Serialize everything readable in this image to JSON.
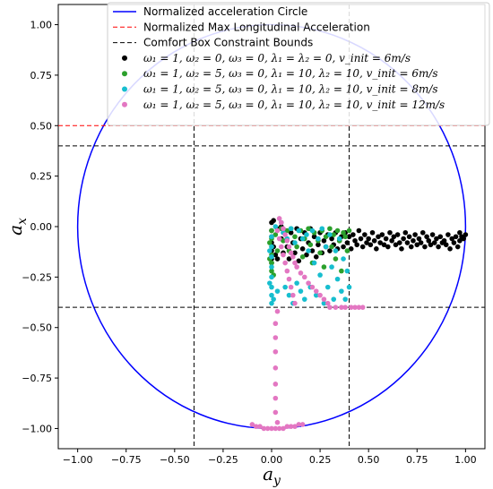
{
  "chart_data": {
    "type": "scatter",
    "title": "",
    "xlabel": "a",
    "xlabel_sub": "y",
    "ylabel": "a",
    "ylabel_sub": "x",
    "xlim": [
      -1.1,
      1.1
    ],
    "ylim": [
      -1.1,
      1.1
    ],
    "xticks": [
      -1.0,
      -0.75,
      -0.5,
      -0.25,
      0.0,
      0.25,
      0.5,
      0.75,
      1.0
    ],
    "xtick_labels": [
      "−1.00",
      "−0.75",
      "−0.50",
      "−0.25",
      "0.00",
      "0.25",
      "0.50",
      "0.75",
      "1.00"
    ],
    "yticks": [
      1.0,
      0.75,
      0.5,
      0.25,
      0.0,
      -0.25,
      -0.5,
      -0.75,
      -1.0
    ],
    "ytick_labels": [
      "1.00",
      "0.75",
      "0.50",
      "0.25",
      "0.00",
      "−0.25",
      "−0.50",
      "−0.75",
      "−1.00"
    ],
    "grid": false,
    "legend_position": "top",
    "lines": [
      {
        "name": "Normalized acceleration Circle",
        "kind": "circle",
        "radius": 1.0,
        "color": "#0000ff",
        "style": "solid"
      },
      {
        "name": "Normalized Max Longitudinal Acceleration",
        "kind": "hline",
        "y": 0.5,
        "color": "#ff0000",
        "style": "dashed"
      },
      {
        "name": "Comfort Box Constraint Bounds",
        "kind": "box",
        "hlines": [
          0.4,
          -0.4
        ],
        "vlines": [
          -0.4,
          0.4
        ],
        "color": "#000000",
        "style": "dashed"
      }
    ],
    "series": [
      {
        "name": "ω₁ = 1, ω₂ = 0, ω₃ = 0, λ₁ = λ₂ = 0, v_init = 6m/s",
        "color": "#000000",
        "points": [
          [
            0.0,
            0.02
          ],
          [
            0.0,
            -0.02
          ],
          [
            0.0,
            -0.05
          ],
          [
            0.0,
            -0.08
          ],
          [
            0.0,
            -0.12
          ],
          [
            0.0,
            -0.16
          ],
          [
            0.0,
            -0.18
          ],
          [
            0.01,
            0.03
          ],
          [
            0.01,
            -0.1
          ],
          [
            0.02,
            -0.14
          ],
          [
            0.03,
            -0.01
          ],
          [
            0.03,
            -0.16
          ],
          [
            0.05,
            0.0
          ],
          [
            0.05,
            -0.06
          ],
          [
            0.06,
            -0.13
          ],
          [
            0.07,
            -0.02
          ],
          [
            0.08,
            -0.1
          ],
          [
            0.09,
            -0.16
          ],
          [
            0.1,
            -0.03
          ],
          [
            0.11,
            -0.08
          ],
          [
            0.12,
            -0.13
          ],
          [
            0.13,
            -0.01
          ],
          [
            0.14,
            -0.17
          ],
          [
            0.15,
            -0.06
          ],
          [
            0.16,
            -0.11
          ],
          [
            0.17,
            -0.03
          ],
          [
            0.18,
            -0.14
          ],
          [
            0.19,
            -0.08
          ],
          [
            0.2,
            -0.01
          ],
          [
            0.21,
            -0.12
          ],
          [
            0.22,
            -0.05
          ],
          [
            0.23,
            -0.15
          ],
          [
            0.24,
            -0.09
          ],
          [
            0.25,
            -0.03
          ],
          [
            0.26,
            -0.13
          ],
          [
            0.27,
            -0.07
          ],
          [
            0.28,
            -0.1
          ],
          [
            0.29,
            -0.04
          ],
          [
            0.3,
            -0.12
          ],
          [
            0.31,
            -0.06
          ],
          [
            0.32,
            -0.09
          ],
          [
            0.33,
            -0.03
          ],
          [
            0.34,
            -0.11
          ],
          [
            0.35,
            -0.07
          ],
          [
            0.36,
            -0.05
          ],
          [
            0.37,
            -0.1
          ],
          [
            0.38,
            -0.03
          ],
          [
            0.39,
            -0.08
          ],
          [
            0.4,
            -0.05
          ],
          [
            0.41,
            -0.11
          ],
          [
            0.42,
            -0.04
          ],
          [
            0.43,
            -0.07
          ],
          [
            0.44,
            -0.09
          ],
          [
            0.45,
            -0.02
          ],
          [
            0.46,
            -0.06
          ],
          [
            0.47,
            -0.1
          ],
          [
            0.48,
            -0.04
          ],
          [
            0.49,
            -0.08
          ],
          [
            0.5,
            -0.06
          ],
          [
            0.51,
            -0.09
          ],
          [
            0.52,
            -0.03
          ],
          [
            0.53,
            -0.07
          ],
          [
            0.54,
            -0.11
          ],
          [
            0.55,
            -0.05
          ],
          [
            0.56,
            -0.08
          ],
          [
            0.57,
            -0.04
          ],
          [
            0.58,
            -0.09
          ],
          [
            0.59,
            -0.06
          ],
          [
            0.6,
            -0.1
          ],
          [
            0.61,
            -0.03
          ],
          [
            0.62,
            -0.07
          ],
          [
            0.63,
            -0.05
          ],
          [
            0.64,
            -0.09
          ],
          [
            0.65,
            -0.04
          ],
          [
            0.66,
            -0.08
          ],
          [
            0.67,
            -0.11
          ],
          [
            0.68,
            -0.06
          ],
          [
            0.69,
            -0.03
          ],
          [
            0.7,
            -0.08
          ],
          [
            0.71,
            -0.05
          ],
          [
            0.72,
            -0.1
          ],
          [
            0.73,
            -0.07
          ],
          [
            0.74,
            -0.04
          ],
          [
            0.75,
            -0.09
          ],
          [
            0.76,
            -0.06
          ],
          [
            0.77,
            -0.08
          ],
          [
            0.78,
            -0.03
          ],
          [
            0.79,
            -0.1
          ],
          [
            0.8,
            -0.05
          ],
          [
            0.81,
            -0.07
          ],
          [
            0.82,
            -0.09
          ],
          [
            0.83,
            -0.04
          ],
          [
            0.84,
            -0.08
          ],
          [
            0.85,
            -0.06
          ],
          [
            0.86,
            -0.1
          ],
          [
            0.87,
            -0.05
          ],
          [
            0.88,
            -0.08
          ],
          [
            0.89,
            -0.07
          ],
          [
            0.9,
            -0.09
          ],
          [
            0.91,
            -0.04
          ],
          [
            0.92,
            -0.11
          ],
          [
            0.93,
            -0.06
          ],
          [
            0.94,
            -0.08
          ],
          [
            0.95,
            -0.05
          ],
          [
            0.96,
            -0.1
          ],
          [
            0.97,
            -0.03
          ],
          [
            0.97,
            -0.07
          ],
          [
            0.98,
            -0.05
          ],
          [
            0.99,
            -0.06
          ],
          [
            1.0,
            -0.04
          ]
        ]
      },
      {
        "name": "ω₁ = 1, ω₂ = 5, ω₃ = 0, λ₁ = 10, λ₂ = 10, v_init = 6m/s",
        "color": "#2ca02c",
        "points": [
          [
            0.0,
            -0.02
          ],
          [
            0.0,
            -0.06
          ],
          [
            0.0,
            -0.1
          ],
          [
            0.0,
            -0.14
          ],
          [
            0.0,
            -0.18
          ],
          [
            0.0,
            -0.22
          ],
          [
            -0.01,
            -0.08
          ],
          [
            -0.01,
            -0.16
          ],
          [
            0.01,
            -0.24
          ],
          [
            0.02,
            -0.04
          ],
          [
            0.03,
            -0.12
          ],
          [
            0.05,
            -0.01
          ],
          [
            0.06,
            -0.07
          ],
          [
            0.08,
            -0.02
          ],
          [
            0.09,
            -0.12
          ],
          [
            0.1,
            -0.01
          ],
          [
            0.12,
            -0.05
          ],
          [
            0.13,
            -0.1
          ],
          [
            0.15,
            -0.02
          ],
          [
            0.16,
            -0.15
          ],
          [
            0.17,
            -0.06
          ],
          [
            0.19,
            -0.01
          ],
          [
            0.2,
            -0.09
          ],
          [
            0.21,
            -0.18
          ],
          [
            0.22,
            -0.03
          ],
          [
            0.24,
            -0.07
          ],
          [
            0.25,
            -0.13
          ],
          [
            0.26,
            -0.02
          ],
          [
            0.27,
            -0.2
          ],
          [
            0.28,
            -0.05
          ],
          [
            0.3,
            -0.01
          ],
          [
            0.31,
            -0.1
          ],
          [
            0.32,
            -0.04
          ],
          [
            0.33,
            -0.16
          ],
          [
            0.34,
            -0.02
          ],
          [
            0.35,
            -0.07
          ],
          [
            0.36,
            -0.22
          ],
          [
            0.37,
            -0.03
          ],
          [
            0.38,
            -0.05
          ],
          [
            0.39,
            -0.12
          ],
          [
            0.4,
            -0.02
          ]
        ]
      },
      {
        "name": "ω₁ = 1, ω₂ = 5, ω₃ = 0, λ₁ = 10, λ₂ = 10, v_init = 8m/s",
        "color": "#17becf",
        "points": [
          [
            0.0,
            -0.05
          ],
          [
            0.0,
            -0.1
          ],
          [
            0.0,
            -0.15
          ],
          [
            0.0,
            -0.2
          ],
          [
            0.0,
            -0.25
          ],
          [
            0.0,
            -0.3
          ],
          [
            0.0,
            -0.34
          ],
          [
            0.0,
            -0.38
          ],
          [
            -0.01,
            -0.12
          ],
          [
            -0.01,
            -0.28
          ],
          [
            0.01,
            -0.36
          ],
          [
            0.02,
            -0.0
          ],
          [
            0.03,
            -0.32
          ],
          [
            0.05,
            0.02
          ],
          [
            0.06,
            -0.03
          ],
          [
            0.07,
            -0.3
          ],
          [
            0.08,
            -0.06
          ],
          [
            0.09,
            -0.34
          ],
          [
            0.1,
            -0.01
          ],
          [
            0.11,
            -0.38
          ],
          [
            0.12,
            -0.08
          ],
          [
            0.13,
            -0.28
          ],
          [
            0.14,
            -0.02
          ],
          [
            0.15,
            -0.32
          ],
          [
            0.16,
            -0.06
          ],
          [
            0.17,
            -0.36
          ],
          [
            0.18,
            -0.04
          ],
          [
            0.19,
            -0.12
          ],
          [
            0.2,
            -0.3
          ],
          [
            0.21,
            -0.02
          ],
          [
            0.22,
            -0.18
          ],
          [
            0.23,
            -0.34
          ],
          [
            0.24,
            -0.06
          ],
          [
            0.25,
            -0.24
          ],
          [
            0.26,
            -0.01
          ],
          [
            0.27,
            -0.38
          ],
          [
            0.28,
            -0.1
          ],
          [
            0.29,
            -0.3
          ],
          [
            0.3,
            -0.04
          ],
          [
            0.31,
            -0.2
          ],
          [
            0.32,
            -0.36
          ],
          [
            0.33,
            -0.12
          ],
          [
            0.34,
            -0.26
          ],
          [
            0.35,
            -0.06
          ],
          [
            0.36,
            -0.32
          ],
          [
            0.37,
            -0.16
          ],
          [
            0.38,
            -0.36
          ],
          [
            0.39,
            -0.22
          ],
          [
            0.4,
            -0.3
          ]
        ]
      },
      {
        "name": "ω₁ = 1, ω₂ = 5, ω₃ = 0, λ₁ = 10, λ₂ = 10, v_init = 12m/s",
        "color": "#e377c2",
        "points": [
          [
            0.04,
            0.04
          ],
          [
            0.05,
            0.02
          ],
          [
            0.06,
            -0.01
          ],
          [
            0.07,
            -0.04
          ],
          [
            0.08,
            -0.07
          ],
          [
            0.09,
            -0.1
          ],
          [
            0.1,
            -0.13
          ],
          [
            0.11,
            -0.15
          ],
          [
            0.12,
            -0.18
          ],
          [
            0.13,
            -0.2
          ],
          [
            0.15,
            -0.23
          ],
          [
            0.17,
            -0.25
          ],
          [
            0.19,
            -0.28
          ],
          [
            0.21,
            -0.3
          ],
          [
            0.23,
            -0.32
          ],
          [
            0.25,
            -0.34
          ],
          [
            0.27,
            -0.36
          ],
          [
            0.29,
            -0.38
          ],
          [
            0.3,
            -0.4
          ],
          [
            0.33,
            -0.4
          ],
          [
            0.36,
            -0.4
          ],
          [
            0.38,
            -0.4
          ],
          [
            0.41,
            -0.4
          ],
          [
            0.43,
            -0.4
          ],
          [
            0.45,
            -0.4
          ],
          [
            0.47,
            -0.4
          ],
          [
            0.03,
            -0.02
          ],
          [
            0.04,
            -0.06
          ],
          [
            0.05,
            -0.1
          ],
          [
            0.06,
            -0.14
          ],
          [
            0.07,
            -0.18
          ],
          [
            0.08,
            -0.22
          ],
          [
            0.09,
            -0.26
          ],
          [
            0.1,
            -0.3
          ],
          [
            0.11,
            -0.34
          ],
          [
            0.12,
            -0.38
          ],
          [
            0.03,
            -0.42
          ],
          [
            0.02,
            -0.48
          ],
          [
            0.02,
            -0.55
          ],
          [
            0.02,
            -0.62
          ],
          [
            0.02,
            -0.7
          ],
          [
            0.02,
            -0.78
          ],
          [
            0.02,
            -0.85
          ],
          [
            0.02,
            -0.92
          ],
          [
            0.03,
            -0.97
          ],
          [
            -0.1,
            -0.98
          ],
          [
            -0.08,
            -0.99
          ],
          [
            -0.06,
            -0.99
          ],
          [
            -0.04,
            -1.0
          ],
          [
            -0.02,
            -1.0
          ],
          [
            0.0,
            -1.0
          ],
          [
            0.02,
            -1.0
          ],
          [
            0.04,
            -1.0
          ],
          [
            0.06,
            -1.0
          ],
          [
            0.08,
            -0.99
          ],
          [
            0.1,
            -0.99
          ],
          [
            0.12,
            -0.99
          ],
          [
            0.14,
            -0.98
          ],
          [
            0.16,
            -0.98
          ]
        ]
      }
    ]
  }
}
